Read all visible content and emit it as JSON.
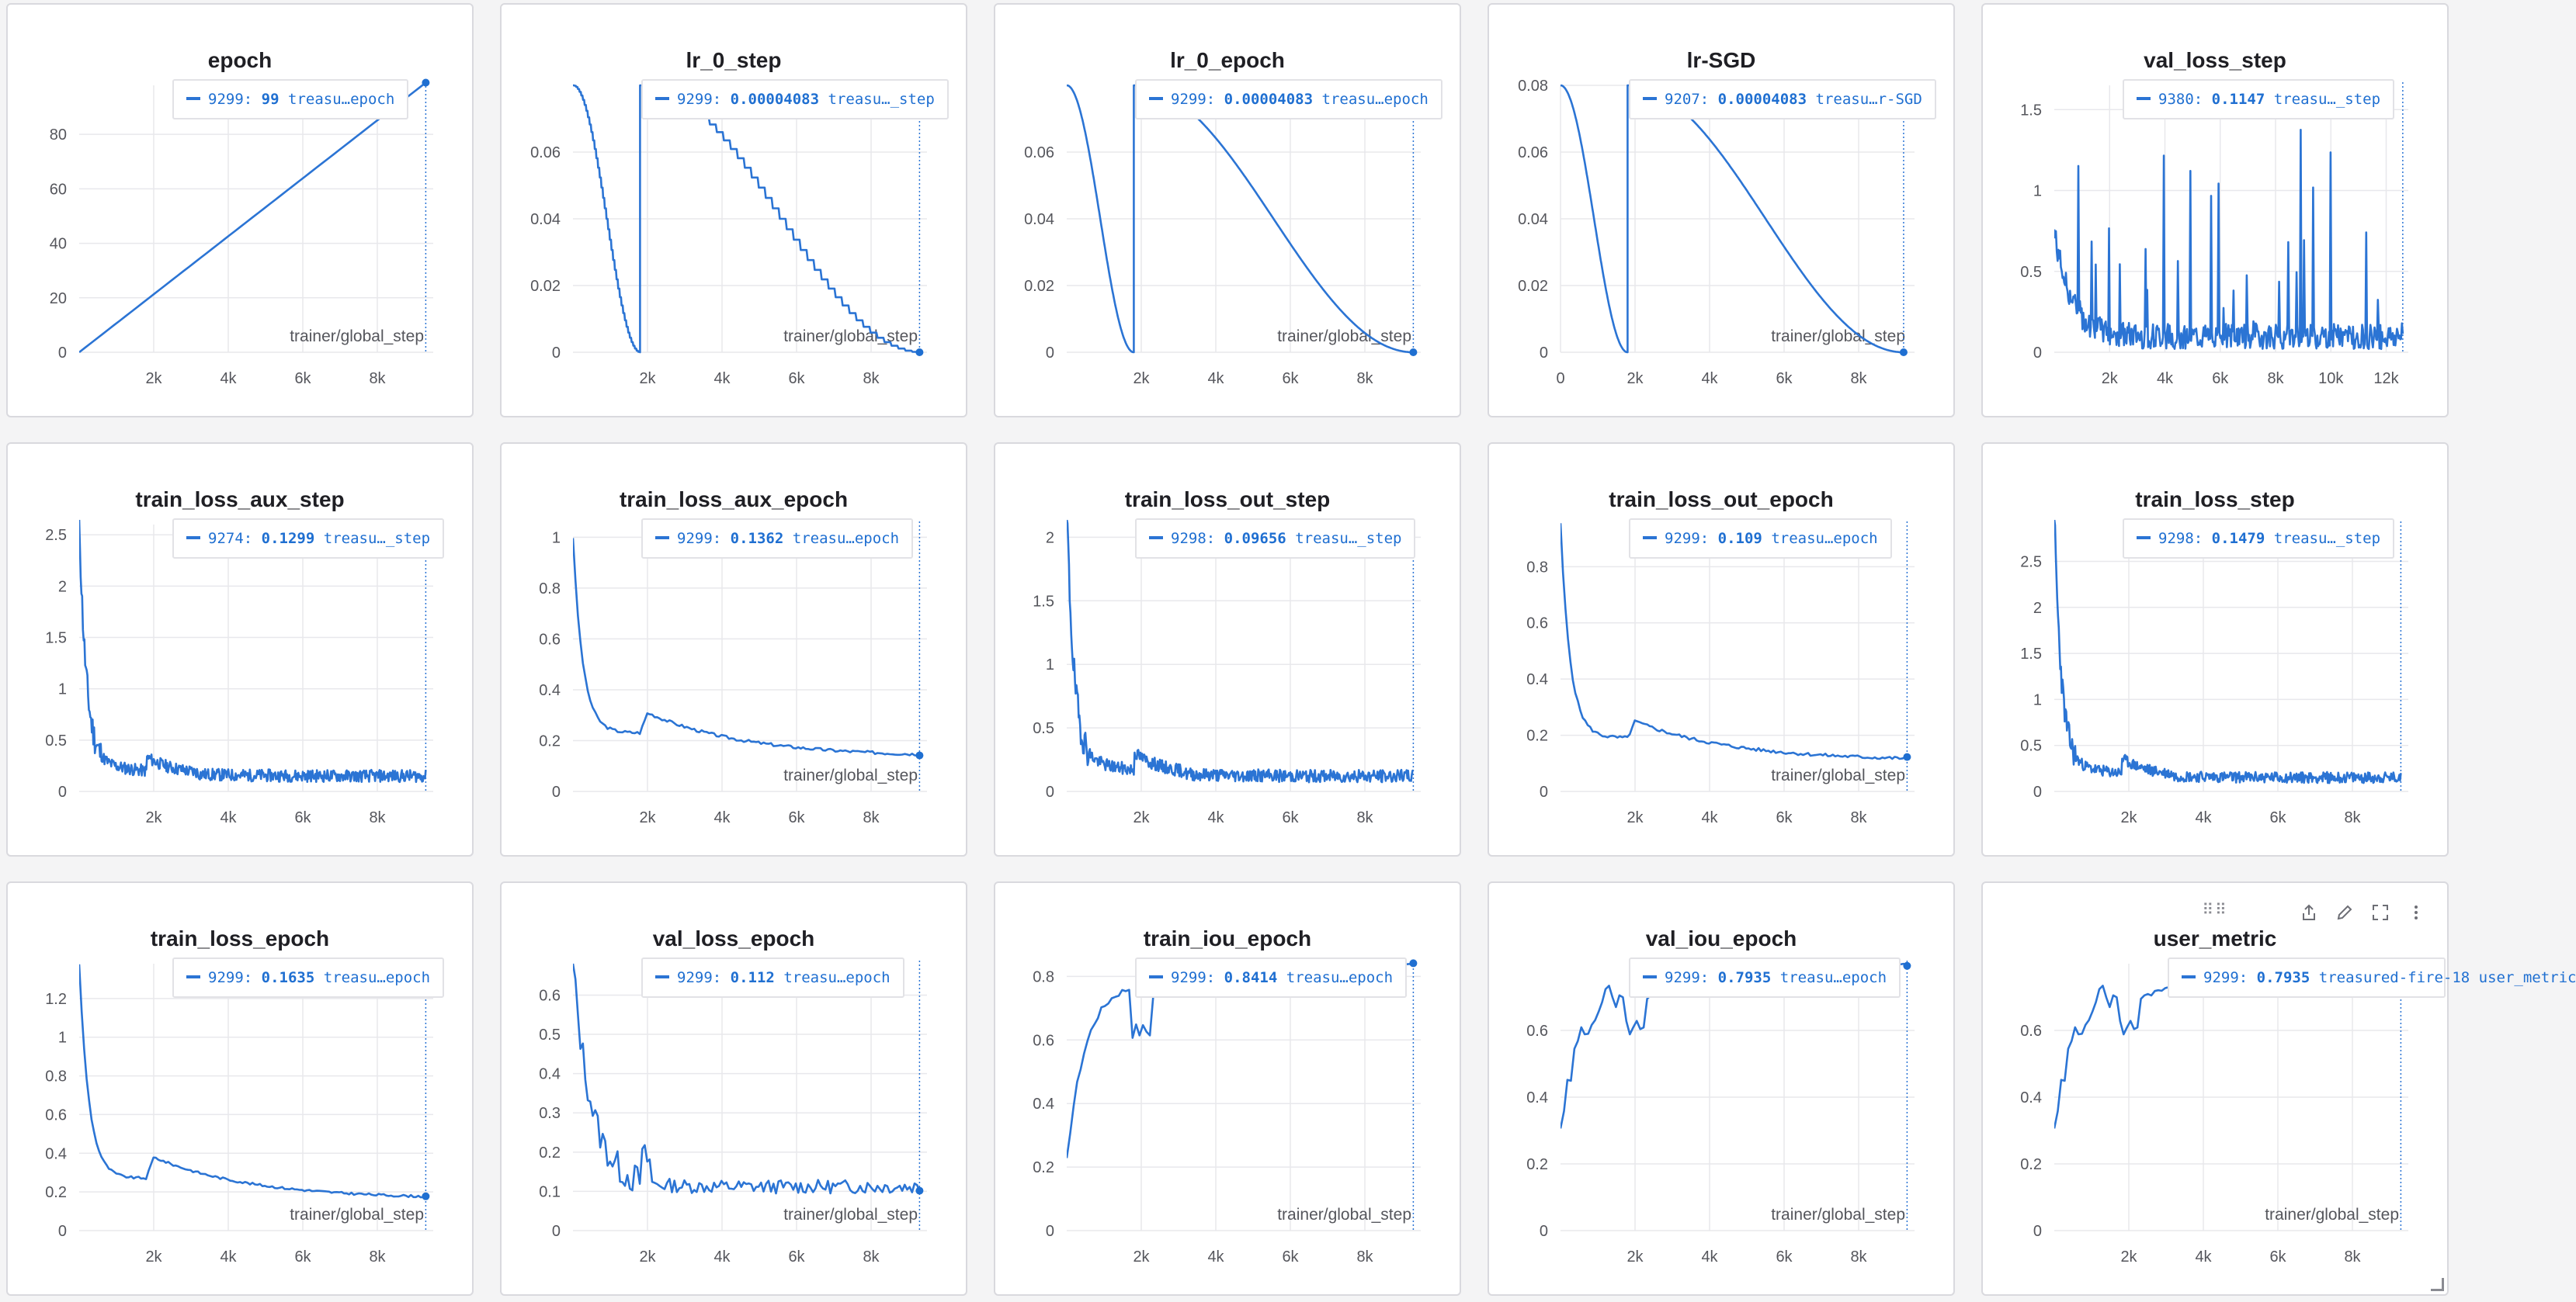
{
  "colors": {
    "series": "#2b74d4",
    "marker": "#1f6fd1",
    "grid": "#e8e8ec",
    "axis_label": "#55565c"
  },
  "active_panel_tools": [
    "share-icon",
    "edit-icon",
    "fullscreen-icon",
    "more-icon",
    "drag-handle-icon"
  ],
  "chart_data": [
    {
      "title": "epoch",
      "type": "line",
      "xlabel": "trainer/global_step",
      "xlim": [
        0,
        9500
      ],
      "ylim": [
        0,
        98
      ],
      "xticks": [
        {
          "v": 2000,
          "l": "2k"
        },
        {
          "v": 4000,
          "l": "4k"
        },
        {
          "v": 6000,
          "l": "6k"
        },
        {
          "v": 8000,
          "l": "8k"
        }
      ],
      "yticks": [
        {
          "v": 0,
          "l": "0"
        },
        {
          "v": 20,
          "l": "20"
        },
        {
          "v": 40,
          "l": "40"
        },
        {
          "v": 60,
          "l": "60"
        },
        {
          "v": 80,
          "l": "80"
        }
      ],
      "legend": {
        "step": "9299:",
        "value": "99",
        "name": "treasu…epoch"
      },
      "gen": "linear",
      "params": {
        "x0": 0,
        "y0": 0,
        "x1": 9300,
        "y1": 99
      },
      "end_marker": true
    },
    {
      "title": "lr_0_step",
      "type": "line",
      "xlabel": "trainer/global_step",
      "xlim": [
        0,
        9500
      ],
      "ylim": [
        0,
        0.08
      ],
      "xticks": [
        {
          "v": 2000,
          "l": "2k"
        },
        {
          "v": 4000,
          "l": "4k"
        },
        {
          "v": 6000,
          "l": "6k"
        },
        {
          "v": 8000,
          "l": "8k"
        }
      ],
      "yticks": [
        {
          "v": 0,
          "l": "0"
        },
        {
          "v": 0.02,
          "l": "0.02"
        },
        {
          "v": 0.04,
          "l": "0.04"
        },
        {
          "v": 0.06,
          "l": "0.06"
        }
      ],
      "legend": {
        "step": "9299:",
        "value": "0.00004083",
        "name": "treasu…_step"
      },
      "gen": "cosine_restart_stepped",
      "params": {
        "max": 0.08,
        "restart": 1800,
        "end": 9300
      },
      "end_marker": true
    },
    {
      "title": "lr_0_epoch",
      "type": "line",
      "xlabel": "trainer/global_step",
      "xlim": [
        0,
        9500
      ],
      "ylim": [
        0,
        0.08
      ],
      "xticks": [
        {
          "v": 2000,
          "l": "2k"
        },
        {
          "v": 4000,
          "l": "4k"
        },
        {
          "v": 6000,
          "l": "6k"
        },
        {
          "v": 8000,
          "l": "8k"
        }
      ],
      "yticks": [
        {
          "v": 0,
          "l": "0"
        },
        {
          "v": 0.02,
          "l": "0.02"
        },
        {
          "v": 0.04,
          "l": "0.04"
        },
        {
          "v": 0.06,
          "l": "0.06"
        }
      ],
      "legend": {
        "step": "9299:",
        "value": "0.00004083",
        "name": "treasu…epoch"
      },
      "gen": "cosine_restart",
      "params": {
        "max": 0.08,
        "restart": 1800,
        "end": 9300
      },
      "end_marker": true
    },
    {
      "title": "lr-SGD",
      "type": "line",
      "xlabel": "trainer/global_step",
      "xlim": [
        0,
        9500
      ],
      "ylim": [
        0,
        0.08
      ],
      "xticks": [
        {
          "v": 0,
          "l": "0"
        },
        {
          "v": 2000,
          "l": "2k"
        },
        {
          "v": 4000,
          "l": "4k"
        },
        {
          "v": 6000,
          "l": "6k"
        },
        {
          "v": 8000,
          "l": "8k"
        }
      ],
      "yticks": [
        {
          "v": 0,
          "l": "0"
        },
        {
          "v": 0.02,
          "l": "0.02"
        },
        {
          "v": 0.04,
          "l": "0.04"
        },
        {
          "v": 0.06,
          "l": "0.06"
        },
        {
          "v": 0.08,
          "l": "0.08"
        }
      ],
      "legend": {
        "step": "9207:",
        "value": "0.00004083",
        "name": "treasu…r-SGD"
      },
      "gen": "cosine_restart",
      "params": {
        "max": 0.08,
        "restart": 1800,
        "end": 9207
      },
      "end_marker": true
    },
    {
      "title": "val_loss_step",
      "type": "line",
      "xlabel": "",
      "xlim": [
        0,
        12800
      ],
      "ylim": [
        0,
        1.65
      ],
      "xticks": [
        {
          "v": 2000,
          "l": "2k"
        },
        {
          "v": 4000,
          "l": "4k"
        },
        {
          "v": 6000,
          "l": "6k"
        },
        {
          "v": 8000,
          "l": "8k"
        },
        {
          "v": 10000,
          "l": "10k"
        },
        {
          "v": 12000,
          "l": "12k"
        }
      ],
      "yticks": [
        {
          "v": 0,
          "l": "0"
        },
        {
          "v": 0.5,
          "l": "0.5"
        },
        {
          "v": 1,
          "l": "1"
        },
        {
          "v": 1.5,
          "l": "1.5"
        }
      ],
      "legend": {
        "step": "9380:",
        "value": "0.1147",
        "name": "treasu…_step"
      },
      "gen": "spiky",
      "params": {
        "start": 0.75,
        "floor": 0.1,
        "end": 12600,
        "seed": 7
      },
      "end_marker": false
    },
    {
      "title": "train_loss_aux_step",
      "type": "line",
      "xlabel": "",
      "xlim": [
        0,
        9500
      ],
      "ylim": [
        0,
        2.6
      ],
      "xticks": [
        {
          "v": 2000,
          "l": "2k"
        },
        {
          "v": 4000,
          "l": "4k"
        },
        {
          "v": 6000,
          "l": "6k"
        },
        {
          "v": 8000,
          "l": "8k"
        }
      ],
      "yticks": [
        {
          "v": 0,
          "l": "0"
        },
        {
          "v": 0.5,
          "l": "0.5"
        },
        {
          "v": 1,
          "l": "1"
        },
        {
          "v": 1.5,
          "l": "1.5"
        },
        {
          "v": 2,
          "l": "2"
        },
        {
          "v": 2.5,
          "l": "2.5"
        }
      ],
      "legend": {
        "step": "9274:",
        "value": "0.1299",
        "name": "treasu…_step"
      },
      "gen": "noisy_decay",
      "params": {
        "start": 2.5,
        "floor": 0.15,
        "bump": 0.12,
        "noise": 0.12,
        "end": 9300,
        "seed": 11
      },
      "end_marker": false
    },
    {
      "title": "train_loss_aux_epoch",
      "type": "line",
      "xlabel": "trainer/global_step",
      "xlim": [
        0,
        9500
      ],
      "ylim": [
        0,
        1.05
      ],
      "xticks": [
        {
          "v": 2000,
          "l": "2k"
        },
        {
          "v": 4000,
          "l": "4k"
        },
        {
          "v": 6000,
          "l": "6k"
        },
        {
          "v": 8000,
          "l": "8k"
        }
      ],
      "yticks": [
        {
          "v": 0,
          "l": "0"
        },
        {
          "v": 0.2,
          "l": "0.2"
        },
        {
          "v": 0.4,
          "l": "0.4"
        },
        {
          "v": 0.6,
          "l": "0.6"
        },
        {
          "v": 0.8,
          "l": "0.8"
        },
        {
          "v": 1,
          "l": "1"
        }
      ],
      "legend": {
        "step": "9299:",
        "value": "0.1362",
        "name": "treasu…epoch"
      },
      "gen": "epoch_decay",
      "params": {
        "start": 1.0,
        "mid": 0.23,
        "bump": 0.31,
        "end_val": 0.136,
        "end": 9300,
        "seed": 3
      },
      "end_marker": true
    },
    {
      "title": "train_loss_out_step",
      "type": "line",
      "xlabel": "",
      "xlim": [
        0,
        9500
      ],
      "ylim": [
        0,
        2.1
      ],
      "xticks": [
        {
          "v": 2000,
          "l": "2k"
        },
        {
          "v": 4000,
          "l": "4k"
        },
        {
          "v": 6000,
          "l": "6k"
        },
        {
          "v": 8000,
          "l": "8k"
        }
      ],
      "yticks": [
        {
          "v": 0,
          "l": "0"
        },
        {
          "v": 0.5,
          "l": "0.5"
        },
        {
          "v": 1,
          "l": "1"
        },
        {
          "v": 1.5,
          "l": "1.5"
        },
        {
          "v": 2,
          "l": "2"
        }
      ],
      "legend": {
        "step": "9298:",
        "value": "0.09656",
        "name": "treasu…_step"
      },
      "gen": "noisy_decay",
      "params": {
        "start": 2.1,
        "floor": 0.12,
        "bump": 0.12,
        "noise": 0.1,
        "end": 9300,
        "seed": 19
      },
      "end_marker": false
    },
    {
      "title": "train_loss_out_epoch",
      "type": "line",
      "xlabel": "trainer/global_step",
      "xlim": [
        0,
        9500
      ],
      "ylim": [
        0,
        0.95
      ],
      "xticks": [
        {
          "v": 2000,
          "l": "2k"
        },
        {
          "v": 4000,
          "l": "4k"
        },
        {
          "v": 6000,
          "l": "6k"
        },
        {
          "v": 8000,
          "l": "8k"
        }
      ],
      "yticks": [
        {
          "v": 0,
          "l": "0"
        },
        {
          "v": 0.2,
          "l": "0.2"
        },
        {
          "v": 0.4,
          "l": "0.4"
        },
        {
          "v": 0.6,
          "l": "0.6"
        },
        {
          "v": 0.8,
          "l": "0.8"
        }
      ],
      "legend": {
        "step": "9299:",
        "value": "0.109",
        "name": "treasu…epoch"
      },
      "gen": "epoch_decay",
      "params": {
        "start": 0.95,
        "mid": 0.19,
        "bump": 0.25,
        "end_val": 0.109,
        "end": 9300,
        "seed": 5
      },
      "end_marker": true
    },
    {
      "title": "train_loss_step",
      "type": "line",
      "xlabel": "",
      "xlim": [
        0,
        9500
      ],
      "ylim": [
        0,
        2.9
      ],
      "xticks": [
        {
          "v": 2000,
          "l": "2k"
        },
        {
          "v": 4000,
          "l": "4k"
        },
        {
          "v": 6000,
          "l": "6k"
        },
        {
          "v": 8000,
          "l": "8k"
        }
      ],
      "yticks": [
        {
          "v": 0,
          "l": "0"
        },
        {
          "v": 0.5,
          "l": "0.5"
        },
        {
          "v": 1,
          "l": "1"
        },
        {
          "v": 1.5,
          "l": "1.5"
        },
        {
          "v": 2,
          "l": "2"
        },
        {
          "v": 2.5,
          "l": "2.5"
        }
      ],
      "legend": {
        "step": "9298:",
        "value": "0.1479",
        "name": "treasu…_step"
      },
      "gen": "noisy_decay",
      "params": {
        "start": 2.9,
        "floor": 0.15,
        "bump": 0.14,
        "noise": 0.12,
        "end": 9300,
        "seed": 23
      },
      "end_marker": false
    },
    {
      "title": "train_loss_epoch",
      "type": "line",
      "xlabel": "trainer/global_step",
      "xlim": [
        0,
        9500
      ],
      "ylim": [
        0,
        1.38
      ],
      "xticks": [
        {
          "v": 2000,
          "l": "2k"
        },
        {
          "v": 4000,
          "l": "4k"
        },
        {
          "v": 6000,
          "l": "6k"
        },
        {
          "v": 8000,
          "l": "8k"
        }
      ],
      "yticks": [
        {
          "v": 0,
          "l": "0"
        },
        {
          "v": 0.2,
          "l": "0.2"
        },
        {
          "v": 0.4,
          "l": "0.4"
        },
        {
          "v": 0.6,
          "l": "0.6"
        },
        {
          "v": 0.8,
          "l": "0.8"
        },
        {
          "v": 1,
          "l": "1"
        },
        {
          "v": 1.2,
          "l": "1.2"
        }
      ],
      "legend": {
        "step": "9299:",
        "value": "0.1635",
        "name": "treasu…epoch"
      },
      "gen": "epoch_decay",
      "params": {
        "start": 1.38,
        "mid": 0.27,
        "bump": 0.38,
        "end_val": 0.1635,
        "end": 9300,
        "seed": 9
      },
      "end_marker": true
    },
    {
      "title": "val_loss_epoch",
      "type": "line",
      "xlabel": "trainer/global_step",
      "xlim": [
        0,
        9500
      ],
      "ylim": [
        0,
        0.68
      ],
      "xticks": [
        {
          "v": 2000,
          "l": "2k"
        },
        {
          "v": 4000,
          "l": "4k"
        },
        {
          "v": 6000,
          "l": "6k"
        },
        {
          "v": 8000,
          "l": "8k"
        }
      ],
      "yticks": [
        {
          "v": 0,
          "l": "0"
        },
        {
          "v": 0.1,
          "l": "0.1"
        },
        {
          "v": 0.2,
          "l": "0.2"
        },
        {
          "v": 0.3,
          "l": "0.3"
        },
        {
          "v": 0.4,
          "l": "0.4"
        },
        {
          "v": 0.5,
          "l": "0.5"
        },
        {
          "v": 0.6,
          "l": "0.6"
        }
      ],
      "legend": {
        "step": "9299:",
        "value": "0.112",
        "name": "treasu…epoch"
      },
      "gen": "val_epoch",
      "params": {
        "start": 0.68,
        "end_val": 0.112,
        "end": 9300,
        "seed": 13
      },
      "end_marker": true
    },
    {
      "title": "train_iou_epoch",
      "type": "line",
      "xlabel": "trainer/global_step",
      "xlim": [
        0,
        9500
      ],
      "ylim": [
        0,
        0.84
      ],
      "xticks": [
        {
          "v": 2000,
          "l": "2k"
        },
        {
          "v": 4000,
          "l": "4k"
        },
        {
          "v": 6000,
          "l": "6k"
        },
        {
          "v": 8000,
          "l": "8k"
        }
      ],
      "yticks": [
        {
          "v": 0,
          "l": "0"
        },
        {
          "v": 0.2,
          "l": "0.2"
        },
        {
          "v": 0.4,
          "l": "0.4"
        },
        {
          "v": 0.6,
          "l": "0.6"
        },
        {
          "v": 0.8,
          "l": "0.8"
        }
      ],
      "legend": {
        "step": "9299:",
        "value": "0.8414",
        "name": "treasu…epoch"
      },
      "gen": "rise",
      "params": {
        "start": 0.22,
        "top": 0.8414,
        "dip": 0.63,
        "noise": 0.01,
        "end": 9300,
        "seed": 17
      },
      "end_marker": true
    },
    {
      "title": "val_iou_epoch",
      "type": "line",
      "xlabel": "trainer/global_step",
      "xlim": [
        0,
        9500
      ],
      "ylim": [
        0,
        0.8
      ],
      "xticks": [
        {
          "v": 2000,
          "l": "2k"
        },
        {
          "v": 4000,
          "l": "4k"
        },
        {
          "v": 6000,
          "l": "6k"
        },
        {
          "v": 8000,
          "l": "8k"
        }
      ],
      "yticks": [
        {
          "v": 0,
          "l": "0"
        },
        {
          "v": 0.2,
          "l": "0.2"
        },
        {
          "v": 0.4,
          "l": "0.4"
        },
        {
          "v": 0.6,
          "l": "0.6"
        }
      ],
      "legend": {
        "step": "9299:",
        "value": "0.7935",
        "name": "treasu…epoch"
      },
      "gen": "rise",
      "params": {
        "start": 0.27,
        "top": 0.7935,
        "dip": 0.61,
        "noise": 0.04,
        "end": 9300,
        "seed": 29
      },
      "end_marker": true
    },
    {
      "title": "user_metric",
      "type": "line",
      "xlabel": "trainer/global_step",
      "xlim": [
        0,
        9500
      ],
      "ylim": [
        0,
        0.8
      ],
      "xticks": [
        {
          "v": 2000,
          "l": "2k"
        },
        {
          "v": 4000,
          "l": "4k"
        },
        {
          "v": 6000,
          "l": "6k"
        },
        {
          "v": 8000,
          "l": "8k"
        }
      ],
      "yticks": [
        {
          "v": 0,
          "l": "0"
        },
        {
          "v": 0.2,
          "l": "0.2"
        },
        {
          "v": 0.4,
          "l": "0.4"
        },
        {
          "v": 0.6,
          "l": "0.6"
        }
      ],
      "legend": {
        "step": "9299:",
        "value": "0.7935",
        "name": "treasured-fire-18 user_metric"
      },
      "gen": "rise",
      "params": {
        "start": 0.27,
        "top": 0.7935,
        "dip": 0.61,
        "noise": 0.04,
        "end": 9300,
        "seed": 29
      },
      "end_marker": true
    }
  ]
}
